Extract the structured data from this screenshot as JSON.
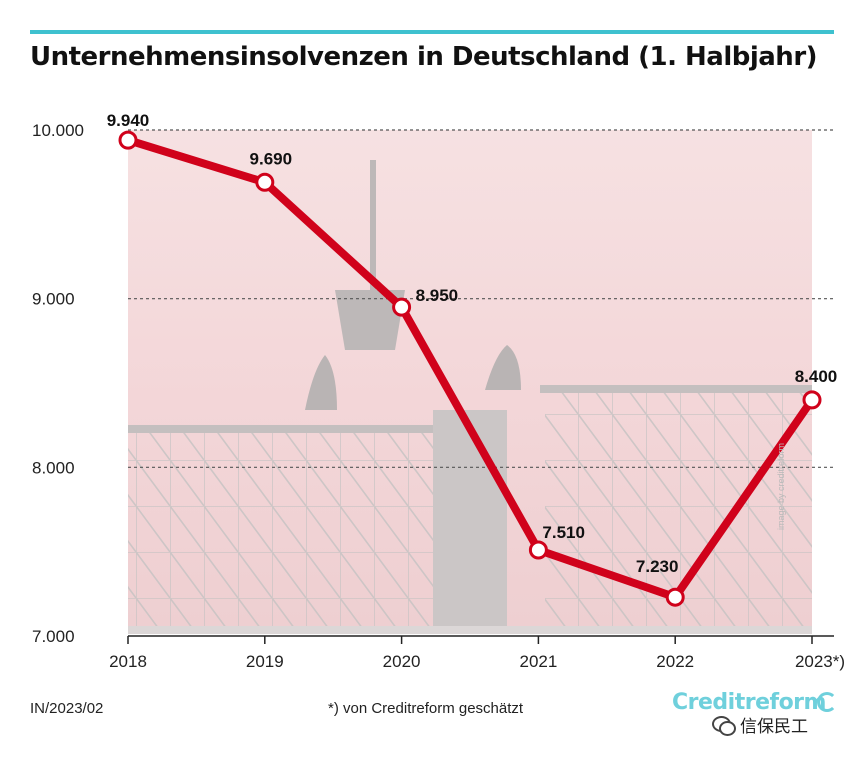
{
  "title": "Unternehmensinsolvenzen in Deutschland (1. Halbjahr)",
  "footer": {
    "source_code": "IN/2023/02",
    "note": "*) von Creditreform geschätzt",
    "brand": "Creditreform",
    "watermark_text": "信保民工",
    "photo_credit": "image by creditreform"
  },
  "colors": {
    "accent_rule": "#3ec1cf",
    "line": "#d0021b",
    "brand": "#6fd0dc"
  },
  "chart_data": {
    "type": "line",
    "title": "Unternehmensinsolvenzen in Deutschland (1. Halbjahr)",
    "categories": [
      "2018",
      "2019",
      "2020",
      "2021",
      "2022",
      "2023*)"
    ],
    "series": [
      {
        "values": [
          9940,
          9690,
          8950,
          7510,
          7230,
          8400
        ]
      }
    ],
    "data_labels": [
      "9.940",
      "9.690",
      "8.950",
      "7.510",
      "7.230",
      "8.400"
    ],
    "y_ticks": [
      7000,
      8000,
      9000,
      10000
    ],
    "y_tick_labels": [
      "7.000",
      "8.000",
      "9.000",
      "10.000"
    ],
    "ylim": [
      7000,
      10000
    ],
    "grid": true,
    "xlabel": "",
    "ylabel": ""
  }
}
